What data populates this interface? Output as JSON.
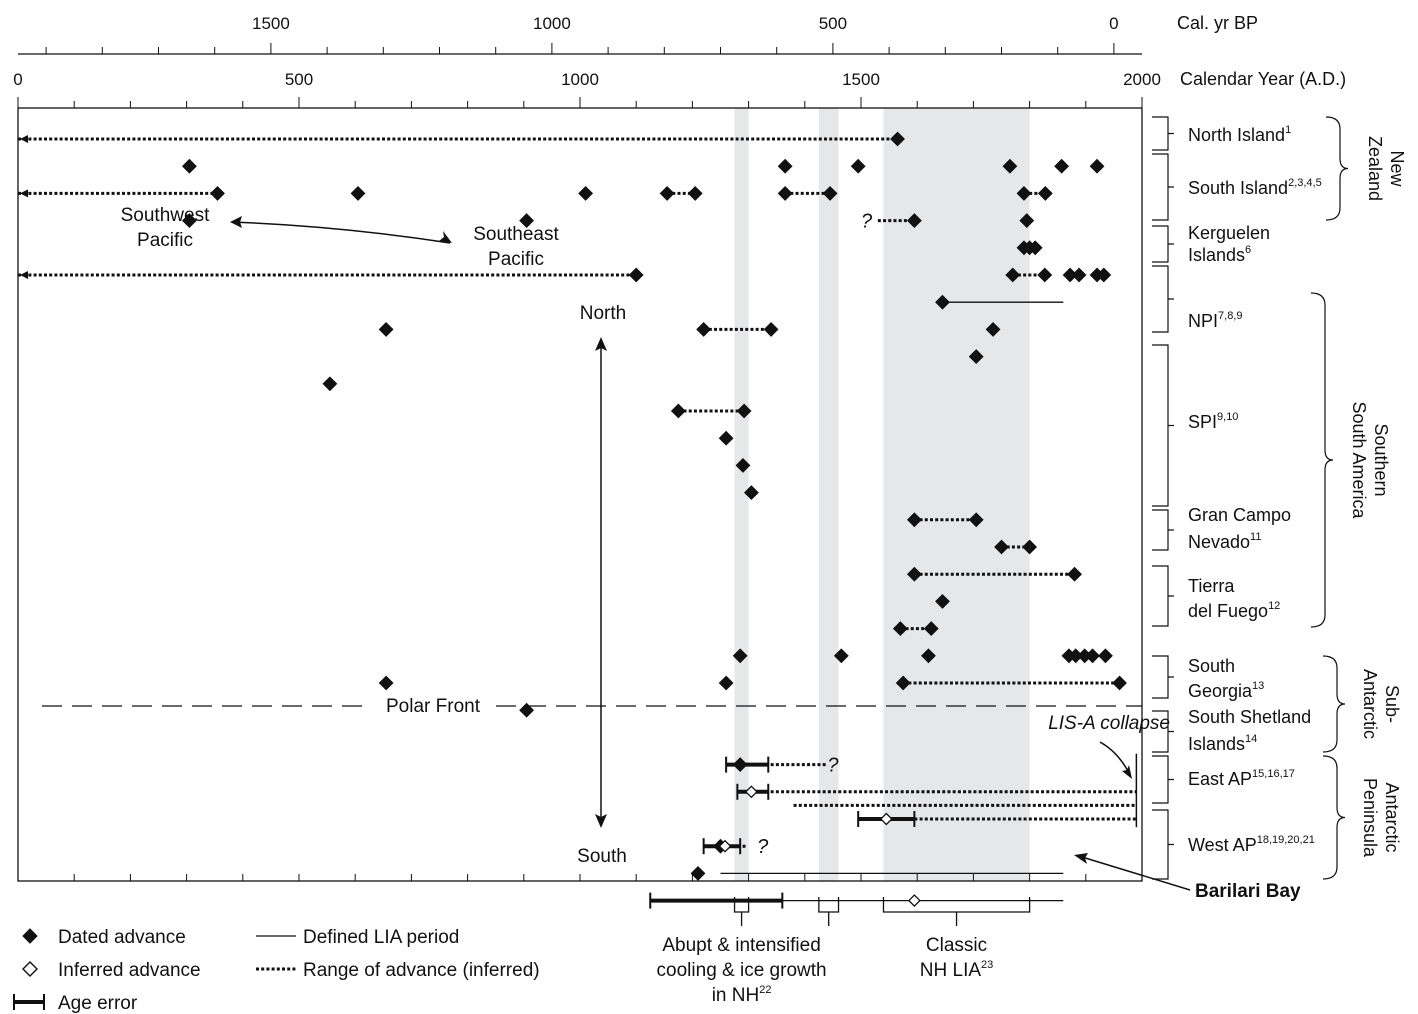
{
  "chart_data": {
    "type": "scatter",
    "xlim": [
      0,
      2000
    ],
    "bp_offset": 1950,
    "axes": {
      "top_label": "Cal. yr BP",
      "top_ticks": [
        "1500",
        "1000",
        "500",
        "0"
      ],
      "bottom_label": "Calendar Year (A.D.)",
      "bottom_ticks": [
        "0",
        "500",
        "1000",
        "1500",
        "2000"
      ]
    },
    "shaded_bands": [
      {
        "range": [
          1275,
          1300
        ]
      },
      {
        "range": [
          1425,
          1460
        ]
      },
      {
        "range": [
          1540,
          1800
        ]
      }
    ],
    "bottom_brackets": [
      {
        "range": [
          1275,
          1300
        ],
        "label_lines": [
          "Abupt & intensified",
          "cooling & ice growth",
          "in NH"
        ],
        "sup": "22"
      },
      {
        "range": [
          1425,
          1460
        ]
      },
      {
        "range": [
          1540,
          1800
        ],
        "label_lines": [
          "Classic",
          "NH LIA"
        ],
        "sup": "23"
      }
    ],
    "region_labels": [
      {
        "lines": [
          "North Island"
        ],
        "sup": "1"
      },
      {
        "lines": [
          "South Island"
        ],
        "sup": "2,3,4,5"
      },
      {
        "lines": [
          "Kerguelen",
          "Islands"
        ],
        "sup": "6"
      },
      {
        "lines": [
          "NPI"
        ],
        "sup": "7,8,9"
      },
      {
        "lines": [
          "SPI"
        ],
        "sup": "9,10"
      },
      {
        "lines": [
          "Gran Campo",
          "Nevado"
        ],
        "sup": "11"
      },
      {
        "lines": [
          "Tierra",
          "del Fuego"
        ],
        "sup": "12"
      },
      {
        "lines": [
          "South",
          "Georgia"
        ],
        "sup": "13"
      },
      {
        "lines": [
          "South Shetland",
          "Islands"
        ],
        "sup": "14"
      },
      {
        "lines": [
          "East AP"
        ],
        "sup": "15,16,17"
      },
      {
        "lines": [
          "West AP"
        ],
        "sup": "18,19,20,21"
      }
    ],
    "group_labels": [
      {
        "lines": [
          "New",
          "Zealand"
        ]
      },
      {
        "lines": [
          "Southern",
          "South America"
        ]
      },
      {
        "lines": [
          "Sub-",
          "Antarctic"
        ]
      },
      {
        "lines": [
          "Antarctic",
          "Peninsula"
        ]
      }
    ],
    "dated_advances": [
      [
        1565,
        1
      ],
      [
        305,
        2
      ],
      [
        1365,
        2
      ],
      [
        1495,
        2
      ],
      [
        1765,
        2
      ],
      [
        1857,
        2
      ],
      [
        1920,
        2
      ],
      [
        355,
        3
      ],
      [
        605,
        3
      ],
      [
        1010,
        3
      ],
      [
        1155,
        3
      ],
      [
        1205,
        3
      ],
      [
        1365,
        3
      ],
      [
        1445,
        3
      ],
      [
        1790,
        3
      ],
      [
        1828,
        3
      ],
      [
        305,
        4
      ],
      [
        905,
        4
      ],
      [
        1595,
        4
      ],
      [
        1795,
        4
      ],
      [
        1790,
        5
      ],
      [
        1800,
        5
      ],
      [
        1810,
        5
      ],
      [
        1100,
        6
      ],
      [
        1770,
        6
      ],
      [
        1827,
        6
      ],
      [
        1872,
        6
      ],
      [
        1888,
        6
      ],
      [
        1920,
        6
      ],
      [
        1932,
        6
      ],
      [
        1645,
        7
      ],
      [
        655,
        8
      ],
      [
        1220,
        8
      ],
      [
        1340,
        8
      ],
      [
        1735,
        8
      ],
      [
        1705,
        9
      ],
      [
        555,
        10
      ],
      [
        1175,
        11
      ],
      [
        1292,
        11
      ],
      [
        1260,
        12
      ],
      [
        1290,
        13
      ],
      [
        1305,
        14
      ],
      [
        1595,
        15
      ],
      [
        1705,
        15
      ],
      [
        1750,
        16
      ],
      [
        1800,
        16
      ],
      [
        1595,
        17
      ],
      [
        1880,
        17
      ],
      [
        1645,
        18
      ],
      [
        1570,
        19
      ],
      [
        1625,
        19
      ],
      [
        1285,
        20
      ],
      [
        1465,
        20
      ],
      [
        1620,
        20
      ],
      [
        1870,
        20
      ],
      [
        1882,
        20
      ],
      [
        1898,
        20
      ],
      [
        1912,
        20
      ],
      [
        1935,
        20
      ],
      [
        655,
        21
      ],
      [
        1260,
        21
      ],
      [
        1575,
        21
      ],
      [
        1960,
        21
      ],
      [
        905,
        22
      ],
      [
        1285,
        24
      ],
      [
        1250,
        27
      ],
      [
        1210,
        28
      ]
    ],
    "inferred_advances": [
      [
        1305,
        25
      ],
      [
        1545,
        26
      ],
      [
        1258,
        27
      ],
      [
        1595,
        29
      ]
    ],
    "advance_ranges": [
      [
        0,
        1565,
        1
      ],
      [
        0,
        355,
        3
      ],
      [
        1155,
        1205,
        3
      ],
      [
        1365,
        1445,
        3
      ],
      [
        1790,
        1828,
        3
      ],
      [
        1530,
        1595,
        4
      ],
      [
        0,
        1100,
        6
      ],
      [
        1770,
        1827,
        6
      ],
      [
        1220,
        1340,
        8
      ],
      [
        1175,
        1292,
        11
      ],
      [
        1595,
        1705,
        15
      ],
      [
        1750,
        1800,
        16
      ],
      [
        1595,
        1880,
        17
      ],
      [
        1570,
        1625,
        19
      ],
      [
        1575,
        1960,
        21
      ],
      [
        1330,
        1440,
        24
      ],
      [
        1330,
        1990,
        25
      ],
      [
        1380,
        1990,
        25.5
      ],
      [
        1595,
        1990,
        26
      ],
      [
        1280,
        1295,
        27
      ]
    ],
    "lia_periods": [
      [
        1645,
        1860,
        7
      ],
      [
        1250,
        1860,
        28
      ],
      [
        1210,
        1860,
        29
      ]
    ],
    "age_errors": [
      [
        1260,
        1335,
        24
      ],
      [
        1280,
        1335,
        25
      ],
      [
        1495,
        1595,
        26
      ],
      [
        1220,
        1285,
        27
      ],
      [
        1125,
        1360,
        29
      ]
    ],
    "range_end_ticks": [
      1990
    ],
    "question_marks": [
      {
        "x": 1510,
        "y": 4,
        "text": "?"
      },
      {
        "x": 1450,
        "y": 24,
        "text": "?"
      },
      {
        "x": 1325,
        "y": 27,
        "text": "?"
      }
    ],
    "annotations": [
      {
        "id": "southwest",
        "lines": [
          "Southwest",
          "Pacific"
        ]
      },
      {
        "id": "southeast",
        "lines": [
          "Southeast",
          "Pacific"
        ]
      },
      {
        "id": "north",
        "lines": [
          "North"
        ]
      },
      {
        "id": "south",
        "lines": [
          "South"
        ]
      },
      {
        "id": "polar-front",
        "lines": [
          "Polar Front"
        ]
      },
      {
        "id": "lis",
        "lines": [
          "LIS-A collapse"
        ]
      },
      {
        "id": "barilari",
        "lines": [
          "Barilari Bay"
        ]
      }
    ],
    "legend": [
      {
        "kind": "dated",
        "label": "Dated advance"
      },
      {
        "kind": "inferred",
        "label": "Inferred advance"
      },
      {
        "kind": "error",
        "label": "Age error"
      },
      {
        "kind": "lia",
        "label": "Defined LIA period"
      },
      {
        "kind": "range",
        "label": "Range of advance (inferred)"
      }
    ],
    "grid": false,
    "legend_position": "bottom-left"
  }
}
